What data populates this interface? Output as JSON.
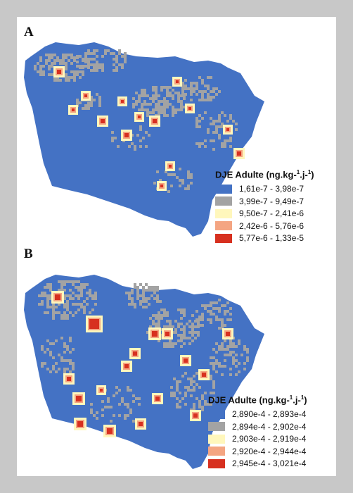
{
  "panels": [
    {
      "label": "A",
      "legend": {
        "title_prefix": "DJE Adulte (ng.kg-",
        "sup1": "1",
        "title_mid": ".j-",
        "sup2": "1",
        "title_suffix": ")",
        "classes": [
          {
            "label": "1,61e-7 - 3,98e-7",
            "color": "#4472c4"
          },
          {
            "label": "3,99e-7 - 9,49e-7",
            "color": "#a3a3a3"
          },
          {
            "label": "9,50e-7 - 2,41e-6",
            "color": "#fff7bc"
          },
          {
            "label": "2,42e-6 - 5,76e-6",
            "color": "#f4a582"
          },
          {
            "label": "5,77e-6 - 1,33e-5",
            "color": "#d7301f"
          }
        ]
      }
    },
    {
      "label": "B",
      "legend": {
        "title_prefix": "DJE Adulte (ng.kg-",
        "sup1": "1",
        "title_mid": ".j-",
        "sup2": "1",
        "title_suffix": ")",
        "classes": [
          {
            "label": "2,890e-4 - 2,893e-4",
            "color": "#4472c4"
          },
          {
            "label": "2,894e-4 - 2,902e-4",
            "color": "#a3a3a3"
          },
          {
            "label": "2,903e-4 - 2,919e-4",
            "color": "#fff7bc"
          },
          {
            "label": "2,920e-4 - 2,944e-4",
            "color": "#f4a582"
          },
          {
            "label": "2,945e-4 - 3,021e-4",
            "color": "#d7301f"
          }
        ]
      }
    }
  ]
}
